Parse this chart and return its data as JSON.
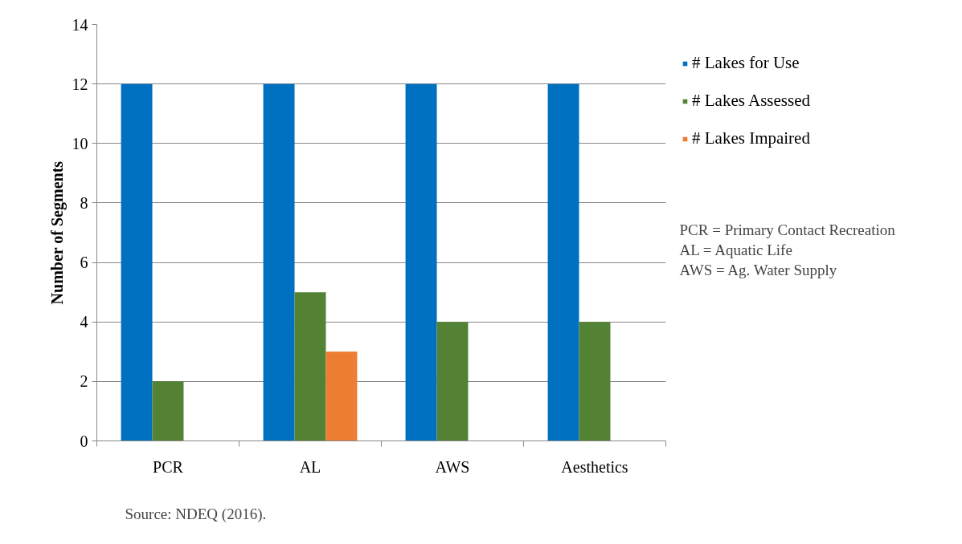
{
  "chart_data": {
    "type": "bar",
    "ylabel": "Number of Segments",
    "categories": [
      "PCR",
      "AL",
      "AWS",
      "Aesthetics"
    ],
    "series": [
      {
        "name": "# Lakes for Use",
        "color": "#0070c0",
        "values": [
          12,
          12,
          12,
          12
        ]
      },
      {
        "name": "# Lakes Assessed",
        "color": "#548235",
        "values": [
          2,
          5,
          4,
          4
        ]
      },
      {
        "name": "# Lakes Impaired",
        "color": "#ed7d31",
        "values": [
          0,
          3,
          0,
          0
        ]
      }
    ],
    "ylim": [
      0,
      14
    ],
    "yticks": [
      0,
      2,
      4,
      6,
      8,
      10,
      12,
      14
    ],
    "grid": "y",
    "legend": "right",
    "annotations": [
      "PCR = Primary Contact Recreation\nAL = Aquatic Life\nAWS = Ag. Water Supply",
      "Source: NDEQ (2016)."
    ]
  }
}
